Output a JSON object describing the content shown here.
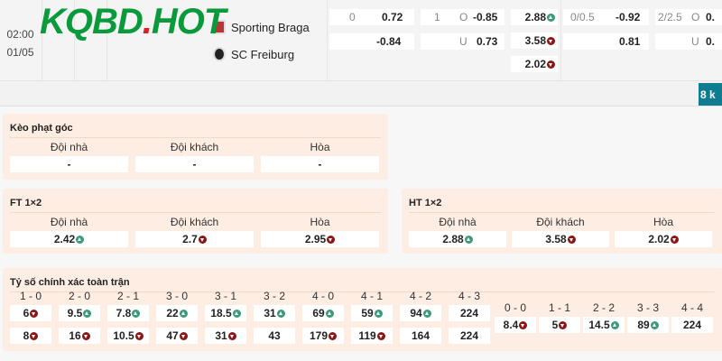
{
  "match": {
    "time": "02:00",
    "date": "01/05",
    "home": "Sporting Braga",
    "away": "SC Freiburg"
  },
  "watermark": {
    "text": "KQBD",
    "dot": ".",
    "suffix": "HOT"
  },
  "odds": {
    "hdp_ft": {
      "line": "0",
      "home": "0.72",
      "away": "-0.84"
    },
    "ou_ft": {
      "line": "1",
      "over_label": "O",
      "over": "-0.85",
      "under_label": "U",
      "under": "0.73"
    },
    "x12_ft": [
      {
        "v": "2.88",
        "dir": "up"
      },
      {
        "v": "3.58",
        "dir": "down"
      },
      {
        "v": "2.02",
        "dir": "down"
      }
    ],
    "hdp_ht": {
      "line": "0/0.5",
      "home": "-0.92",
      "away": "0.81"
    },
    "ou_ht": {
      "line": "2/2.5",
      "over_label": "O",
      "over": "0.",
      "under_label": "U",
      "under": "0."
    }
  },
  "more_button": "8 k",
  "corner": {
    "title": "Kèo phạt góc",
    "headers": [
      "Đội nhà",
      "Đội khách",
      "Hòa"
    ],
    "values": [
      "-",
      "-",
      "-"
    ]
  },
  "ft": {
    "title": "FT 1×2",
    "headers": [
      "Đội nhà",
      "Đội khách",
      "Hòa"
    ],
    "values": [
      {
        "v": "2.42",
        "dir": "up"
      },
      {
        "v": "2.7",
        "dir": "down"
      },
      {
        "v": "2.95",
        "dir": "down"
      }
    ]
  },
  "ht": {
    "title": "HT 1×2",
    "headers": [
      "Đội nhà",
      "Đội khách",
      "Hòa"
    ],
    "values": [
      {
        "v": "2.88",
        "dir": "up"
      },
      {
        "v": "3.58",
        "dir": "down"
      },
      {
        "v": "2.02",
        "dir": "down"
      }
    ]
  },
  "colors": {
    "up_bg": "#d8f6e8",
    "down_bg": "#fbdada",
    "accent": "#0f7c8f"
  },
  "scores": {
    "title": "Tỷ số chính xác toàn trận",
    "wins": [
      {
        "s": "1 - 0",
        "a": {
          "v": "6",
          "dir": "down"
        },
        "b": {
          "v": "8",
          "dir": "down"
        }
      },
      {
        "s": "2 - 0",
        "a": {
          "v": "9.5",
          "dir": "up"
        },
        "b": {
          "v": "16",
          "dir": "down"
        }
      },
      {
        "s": "2 - 1",
        "a": {
          "v": "7.8",
          "dir": "up"
        },
        "b": {
          "v": "10.5",
          "dir": "down"
        }
      },
      {
        "s": "3 - 0",
        "a": {
          "v": "22",
          "dir": "up"
        },
        "b": {
          "v": "47",
          "dir": "down"
        }
      },
      {
        "s": "3 - 1",
        "a": {
          "v": "18.5",
          "dir": "up"
        },
        "b": {
          "v": "31",
          "dir": "down"
        }
      },
      {
        "s": "3 - 2",
        "a": {
          "v": "31",
          "dir": "up"
        },
        "b": {
          "v": "43",
          "dir": ""
        }
      },
      {
        "s": "4 - 0",
        "a": {
          "v": "69",
          "dir": "up"
        },
        "b": {
          "v": "179",
          "dir": "down"
        }
      },
      {
        "s": "4 - 1",
        "a": {
          "v": "59",
          "dir": "up"
        },
        "b": {
          "v": "119",
          "dir": "down"
        }
      },
      {
        "s": "4 - 2",
        "a": {
          "v": "94",
          "dir": "up"
        },
        "b": {
          "v": "164",
          "dir": ""
        }
      },
      {
        "s": "4 - 3",
        "a": {
          "v": "224",
          "dir": ""
        },
        "b": {
          "v": "224",
          "dir": ""
        }
      }
    ],
    "draws": [
      {
        "s": "0 - 0",
        "a": {
          "v": "8.4",
          "dir": "down"
        }
      },
      {
        "s": "1 - 1",
        "a": {
          "v": "5",
          "dir": "down"
        }
      },
      {
        "s": "2 - 2",
        "a": {
          "v": "14.5",
          "dir": "up"
        }
      },
      {
        "s": "3 - 3",
        "a": {
          "v": "89",
          "dir": "up"
        }
      },
      {
        "s": "4 - 4",
        "a": {
          "v": "224",
          "dir": ""
        }
      }
    ]
  }
}
